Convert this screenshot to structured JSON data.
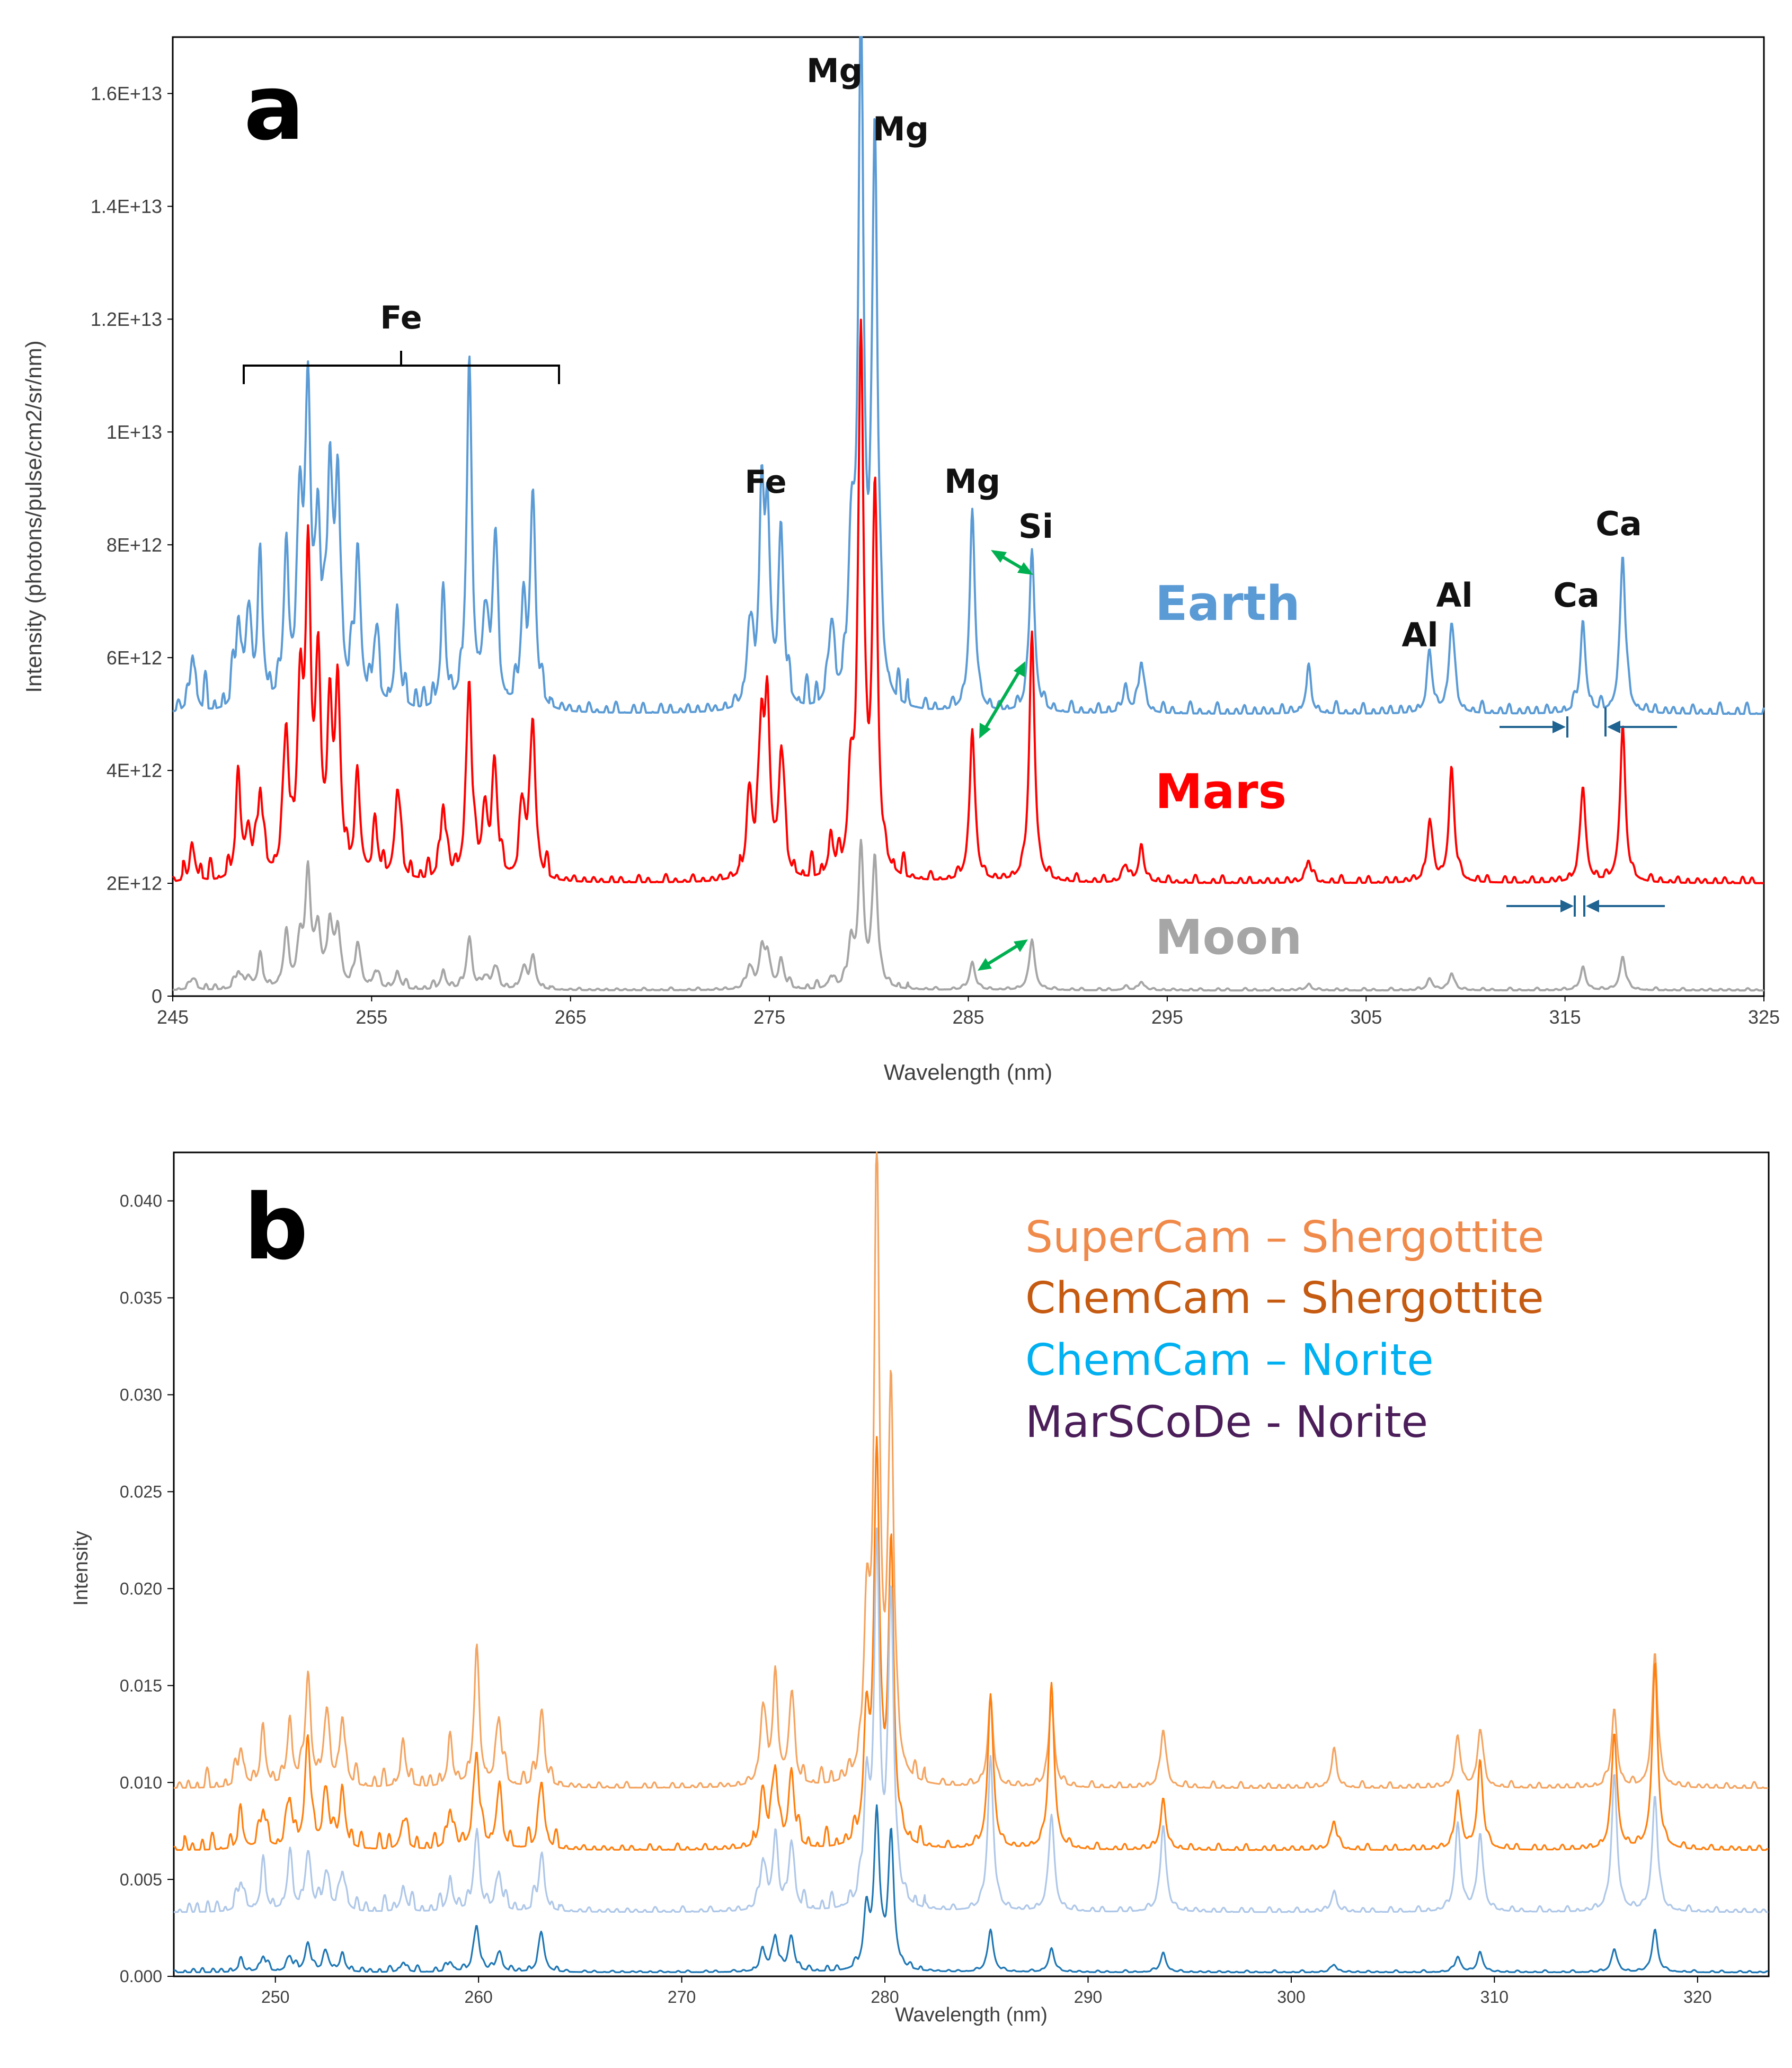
{
  "colors": {
    "earth": "#5b9bd5",
    "mars": "#ff0000",
    "moon": "#a6a6a6",
    "green_arrow": "#00b050",
    "blue_arrow": "#1f6391",
    "supercam_shergottite": "#f4a460",
    "chemcam_shergottite": "#ff7f0e",
    "chemcam_norite": "#aec7e8",
    "marscode_norite": "#1f77b4",
    "legend_supercam": "#f08a4b",
    "legend_chemcam_sherg": "#c55a11",
    "legend_chemcam_norite": "#00b0f0",
    "legend_marscode": "#4b1e5a"
  },
  "panel_a": {
    "letter": "a",
    "series_labels": {
      "earth": "Earth",
      "mars": "Mars",
      "moon": "Moon"
    },
    "element_labels": {
      "fe_bracket": "Fe",
      "fe_275": "Fe",
      "mg_279": "Mg",
      "mg_280": "Mg",
      "mg_285": "Mg",
      "si_288": "Si",
      "al_308": "Al",
      "al_309": "Al",
      "ca_316": "Ca",
      "ca_318": "Ca"
    }
  },
  "panel_b": {
    "letter": "b",
    "legend": [
      "SuperCam – Shergottite",
      "ChemCam – Shergottite",
      "ChemCam – Norite",
      "MarSCoDe - Norite"
    ]
  },
  "chart_data": [
    {
      "type": "line",
      "xlabel": "Wavelength (nm)",
      "ylabel": "Intensity (photons/pulse/cm2/sr/nm)",
      "xlim": [
        245,
        325
      ],
      "ylim": [
        0,
        17000000000000.0
      ],
      "x_ticks": [
        "245",
        "255",
        "265",
        "275",
        "285",
        "295",
        "305",
        "315",
        "325"
      ],
      "y_ticks": [
        "0",
        "2E+12",
        "4E+12",
        "6E+12",
        "8E+12",
        "1E+13",
        "1.2E+13",
        "1.4E+13",
        "1.6E+13"
      ],
      "grid": false,
      "peaks_nm": [
        246.0,
        248.3,
        248.8,
        249.4,
        250.7,
        251.4,
        251.8,
        252.3,
        252.9,
        253.3,
        254.3,
        255.2,
        256.3,
        258.6,
        259.9,
        260.7,
        261.2,
        262.6,
        263.1,
        274.0,
        274.6,
        274.9,
        275.6,
        278.1,
        279.1,
        279.6,
        280.3,
        285.2,
        288.2,
        292.9,
        293.7,
        302.1,
        308.2,
        309.3,
        315.9,
        317.9
      ],
      "series": [
        {
          "name": "Earth",
          "baseline": 5000000000000.0,
          "peak_heights": [
            1000000000000.0,
            1500000000000.0,
            1600000000000.0,
            2300000000000.0,
            2500000000000.0,
            3300000000000.0,
            5300000000000.0,
            3000000000000.0,
            3900000000000.0,
            3800000000000.0,
            2800000000000.0,
            1200000000000.0,
            1500000000000.0,
            1700000000000.0,
            5700000000000.0,
            1500000000000.0,
            2800000000000.0,
            1500000000000.0,
            3800000000000.0,
            1400000000000.0,
            3000000000000.0,
            3200000000000.0,
            2800000000000.0,
            1300000000000.0,
            2500000000000.0,
            12000000000000.0,
            10000000000000.0,
            3500000000000.0,
            2900000000000.0,
            400000000000.0,
            900000000000.0,
            700000000000.0,
            1000000000000.0,
            1600000000000.0,
            1600000000000.0,
            2800000000000.0
          ]
        },
        {
          "name": "Mars",
          "baseline": 2000000000000.0,
          "peak_heights": [
            600000000000.0,
            1600000000000.0,
            800000000000.0,
            1500000000000.0,
            2500000000000.0,
            3000000000000.0,
            5300000000000.0,
            3500000000000.0,
            2500000000000.0,
            3200000000000.0,
            1600000000000.0,
            800000000000.0,
            1600000000000.0,
            1300000000000.0,
            3500000000000.0,
            1200000000000.0,
            1900000000000.0,
            1200000000000.0,
            2800000000000.0,
            1500000000000.0,
            2500000000000.0,
            2700000000000.0,
            2200000000000.0,
            600000000000.0,
            1500000000000.0,
            9500000000000.0,
            6600000000000.0,
            2700000000000.0,
            4400000000000.0,
            300000000000.0,
            600000000000.0,
            400000000000.0,
            1100000000000.0,
            2000000000000.0,
            1700000000000.0,
            2700000000000.0
          ]
        },
        {
          "name": "Moon",
          "baseline": 100000000000.0,
          "peak_heights": [
            200000000000.0,
            300000000000.0,
            200000000000.0,
            500000000000.0,
            900000000000.0,
            800000000000.0,
            2000000000000.0,
            1000000000000.0,
            1100000000000.0,
            1000000000000.0,
            800000000000.0,
            300000000000.0,
            300000000000.0,
            300000000000.0,
            900000000000.0,
            200000000000.0,
            400000000000.0,
            300000000000.0,
            600000000000.0,
            400000000000.0,
            600000000000.0,
            600000000000.0,
            500000000000.0,
            200000000000.0,
            800000000000.0,
            2400000000000.0,
            2300000000000.0,
            500000000000.0,
            900000000000.0,
            50000000000.0,
            150000000000.0,
            100000000000.0,
            200000000000.0,
            300000000000.0,
            400000000000.0,
            600000000000.0
          ]
        }
      ]
    },
    {
      "type": "line",
      "xlabel": "Wavelength (nm)",
      "ylabel": "Intensity",
      "xlim": [
        245,
        323.5
      ],
      "ylim": [
        0,
        0.0425
      ],
      "x_ticks": [
        "250",
        "260",
        "270",
        "280",
        "290",
        "300",
        "310",
        "320"
      ],
      "y_ticks": [
        "0.000",
        "0.005",
        "0.010",
        "0.015",
        "0.020",
        "0.025",
        "0.030",
        "0.035",
        "0.040"
      ],
      "grid": false,
      "peaks_nm": [
        248.3,
        249.4,
        250.7,
        251.6,
        252.5,
        253.3,
        256.3,
        258.6,
        259.9,
        261.0,
        263.1,
        274.0,
        274.6,
        275.4,
        279.1,
        279.6,
        280.3,
        285.2,
        288.2,
        293.7,
        302.1,
        308.2,
        309.3,
        315.9,
        317.9
      ],
      "series": [
        {
          "name": "SuperCam – Shergottite",
          "baseline": 0.0097,
          "peak_heights": [
            0.002,
            0.0025,
            0.003,
            0.0055,
            0.0035,
            0.0035,
            0.002,
            0.002,
            0.0065,
            0.0035,
            0.004,
            0.004,
            0.005,
            0.0045,
            0.008,
            0.032,
            0.02,
            0.0045,
            0.0045,
            0.003,
            0.0018,
            0.0025,
            0.003,
            0.004,
            0.007
          ]
        },
        {
          "name": "ChemCam – Shergottite",
          "baseline": 0.0065,
          "peak_heights": [
            0.0015,
            0.002,
            0.0025,
            0.0055,
            0.003,
            0.003,
            0.0015,
            0.002,
            0.005,
            0.003,
            0.0035,
            0.003,
            0.004,
            0.004,
            0.006,
            0.02,
            0.015,
            0.008,
            0.0085,
            0.0025,
            0.0015,
            0.003,
            0.0045,
            0.006,
            0.0095
          ]
        },
        {
          "name": "ChemCam – Norite",
          "baseline": 0.0033,
          "peak_heights": [
            0.0015,
            0.002,
            0.0025,
            0.003,
            0.002,
            0.002,
            0.0012,
            0.0015,
            0.004,
            0.002,
            0.003,
            0.0025,
            0.0035,
            0.0035,
            0.006,
            0.018,
            0.016,
            0.008,
            0.005,
            0.0045,
            0.001,
            0.0045,
            0.004,
            0.007,
            0.006
          ]
        },
        {
          "name": "MarSCoDe - Norite",
          "baseline": 0.0002,
          "peak_heights": [
            0.0005,
            0.0008,
            0.0008,
            0.0015,
            0.001,
            0.0008,
            0.0005,
            0.0005,
            0.0024,
            0.001,
            0.002,
            0.001,
            0.0018,
            0.0018,
            0.003,
            0.008,
            0.007,
            0.0022,
            0.0012,
            0.001,
            0.0004,
            0.0008,
            0.001,
            0.0012,
            0.0022
          ]
        }
      ]
    }
  ]
}
